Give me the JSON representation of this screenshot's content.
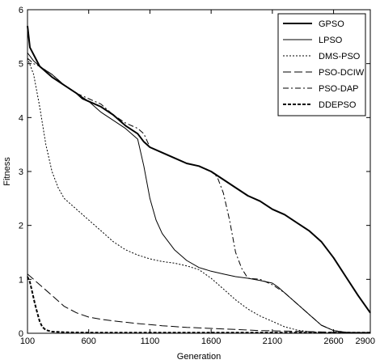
{
  "chart_data": {
    "type": "line",
    "xlabel": "Generation",
    "ylabel": "Fitness",
    "xlim": [
      100,
      2900
    ],
    "ylim": [
      0,
      6
    ],
    "x_ticks": [
      100,
      600,
      1100,
      1600,
      2100,
      2600,
      2900
    ],
    "y_ticks": [
      0,
      1,
      2,
      3,
      4,
      5,
      6
    ],
    "grid": false,
    "legend_position": "top-right",
    "series": [
      {
        "name": "GPSO",
        "style": "solid-thick",
        "x": [
          100,
          120,
          200,
          300,
          400,
          500,
          550,
          600,
          700,
          800,
          900,
          1000,
          1050,
          1100,
          1200,
          1300,
          1400,
          1500,
          1600,
          1700,
          1800,
          1900,
          2000,
          2100,
          2200,
          2300,
          2400,
          2500,
          2600,
          2700,
          2800,
          2900
        ],
        "y": [
          5.7,
          5.3,
          4.95,
          4.75,
          4.6,
          4.45,
          4.35,
          4.3,
          4.2,
          4.05,
          3.85,
          3.7,
          3.55,
          3.45,
          3.35,
          3.25,
          3.15,
          3.1,
          3.0,
          2.85,
          2.7,
          2.55,
          2.45,
          2.3,
          2.2,
          2.05,
          1.9,
          1.7,
          1.4,
          1.05,
          0.7,
          0.38
        ]
      },
      {
        "name": "LPSO",
        "style": "solid-thin",
        "x": [
          100,
          150,
          200,
          300,
          400,
          500,
          600,
          700,
          800,
          900,
          1000,
          1050,
          1100,
          1150,
          1200,
          1300,
          1400,
          1500,
          1600,
          1700,
          1800,
          1900,
          2000,
          2100,
          2150,
          2200,
          2300,
          2400,
          2500,
          2600,
          2700,
          2800,
          2900
        ],
        "y": [
          5.2,
          5.05,
          4.95,
          4.8,
          4.6,
          4.45,
          4.3,
          4.1,
          3.95,
          3.8,
          3.6,
          3.1,
          2.5,
          2.1,
          1.85,
          1.55,
          1.35,
          1.22,
          1.15,
          1.1,
          1.05,
          1.02,
          0.98,
          0.93,
          0.85,
          0.75,
          0.55,
          0.35,
          0.15,
          0.05,
          0.02,
          0.01,
          0.01
        ]
      },
      {
        "name": "DMS-PSO",
        "style": "dotted",
        "x": [
          100,
          150,
          200,
          250,
          300,
          350,
          400,
          500,
          600,
          700,
          800,
          900,
          1000,
          1100,
          1200,
          1300,
          1400,
          1500,
          1600,
          1700,
          1800,
          1900,
          2000,
          2100,
          2200,
          2300,
          2400,
          2500,
          2600,
          2700,
          2800,
          2900
        ],
        "y": [
          5.1,
          4.8,
          4.2,
          3.5,
          3.0,
          2.7,
          2.5,
          2.3,
          2.1,
          1.9,
          1.7,
          1.55,
          1.45,
          1.38,
          1.33,
          1.3,
          1.25,
          1.18,
          1.02,
          0.82,
          0.62,
          0.45,
          0.32,
          0.22,
          0.12,
          0.06,
          0.03,
          0.01,
          0.0,
          0.0,
          0.0,
          0.0
        ]
      },
      {
        "name": "PSO-DCIW",
        "style": "long-dash",
        "x": [
          100,
          200,
          300,
          400,
          500,
          600,
          700,
          800,
          1000,
          1200,
          1400,
          1600,
          1800,
          2000,
          2200,
          2400,
          2600,
          2900
        ],
        "y": [
          1.1,
          0.9,
          0.7,
          0.5,
          0.38,
          0.3,
          0.26,
          0.23,
          0.18,
          0.14,
          0.11,
          0.09,
          0.07,
          0.05,
          0.04,
          0.03,
          0.02,
          0.01
        ]
      },
      {
        "name": "PSO-DAP",
        "style": "dash-dot",
        "x": [
          100,
          150,
          200,
          300,
          400,
          500,
          600,
          700,
          800,
          900,
          1000,
          1050,
          1100,
          1200,
          1300,
          1400,
          1500,
          1600,
          1650,
          1700,
          1750,
          1800,
          1850,
          1900,
          2000,
          2100,
          2200,
          2300,
          2400,
          2500,
          2600,
          2700,
          2800,
          2900
        ],
        "y": [
          5.1,
          5.0,
          4.95,
          4.8,
          4.6,
          4.45,
          4.35,
          4.25,
          4.05,
          3.9,
          3.8,
          3.7,
          3.45,
          3.35,
          3.25,
          3.15,
          3.1,
          3.0,
          2.9,
          2.6,
          2.1,
          1.5,
          1.2,
          1.02,
          1.0,
          0.9,
          0.75,
          0.55,
          0.35,
          0.15,
          0.05,
          0.02,
          0.01,
          0.01
        ]
      },
      {
        "name": "DDEPSO",
        "style": "dashed-thick",
        "x": [
          100,
          120,
          140,
          160,
          180,
          200,
          220,
          250,
          300,
          400,
          600,
          1000,
          1500,
          2000,
          2500,
          2900
        ],
        "y": [
          1.05,
          0.95,
          0.75,
          0.55,
          0.38,
          0.22,
          0.12,
          0.06,
          0.03,
          0.02,
          0.01,
          0.01,
          0.01,
          0.01,
          0.01,
          0.01
        ]
      }
    ]
  }
}
